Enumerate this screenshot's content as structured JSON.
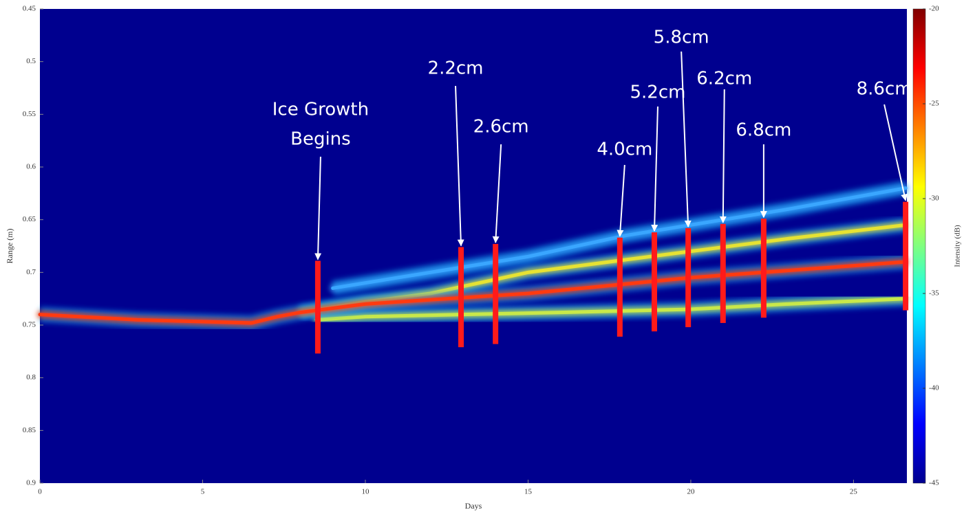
{
  "chart_data": {
    "type": "line",
    "x_label": "Days",
    "y_label": "Range (m)",
    "xlim": [
      0,
      26.64
    ],
    "xticks": [
      0,
      5,
      10,
      15,
      20,
      25
    ],
    "ylim": [
      0.45,
      0.9
    ],
    "yticks": [
      0.45,
      0.5,
      0.55,
      0.6,
      0.65,
      0.7,
      0.75,
      0.8,
      0.85,
      0.9
    ],
    "y_inverted": true,
    "background": "#00008f",
    "colorbar": {
      "label": "Intensity (dB)",
      "clim": [
        -45,
        -20
      ],
      "ticks": [
        -20,
        -25,
        -30,
        -35,
        -40,
        -45
      ]
    },
    "series": [
      {
        "color": "#3aa6ff",
        "x": [
          9,
          12,
          15,
          18,
          20,
          23,
          26.6
        ],
        "values": [
          0.715,
          0.7,
          0.685,
          0.665,
          0.655,
          0.64,
          0.62
        ]
      },
      {
        "color": "#e6e233",
        "x": [
          8,
          10,
          12,
          15,
          18,
          20,
          23,
          26.6
        ],
        "values": [
          0.738,
          0.728,
          0.72,
          0.7,
          0.688,
          0.68,
          0.668,
          0.655
        ]
      },
      {
        "color": "#c8e84a",
        "x": [
          8.5,
          10,
          13,
          16,
          20,
          23,
          26.6
        ],
        "values": [
          0.745,
          0.742,
          0.74,
          0.738,
          0.735,
          0.73,
          0.725
        ]
      },
      {
        "color": "#ff3a10",
        "x": [
          0,
          3,
          6.5,
          7.3,
          8,
          10,
          15,
          20,
          26.6
        ],
        "values": [
          0.74,
          0.745,
          0.748,
          0.742,
          0.738,
          0.73,
          0.72,
          0.705,
          0.69
        ]
      }
    ],
    "annotations": [
      {
        "label": [
          "Ice Growth",
          "Begins"
        ],
        "day": 8.54,
        "range_top": 0.689,
        "range_bottom": 0.777
      },
      {
        "label": [
          "2.2cm"
        ],
        "day": 12.94,
        "range_top": 0.676,
        "range_bottom": 0.771
      },
      {
        "label": [
          "2.6cm"
        ],
        "day": 14.0,
        "range_top": 0.673,
        "range_bottom": 0.768
      },
      {
        "label": [
          "4.0cm"
        ],
        "day": 17.82,
        "range_top": 0.667,
        "range_bottom": 0.761
      },
      {
        "label": [
          "5.2cm"
        ],
        "day": 18.88,
        "range_top": 0.662,
        "range_bottom": 0.756
      },
      {
        "label": [
          "5.8cm"
        ],
        "day": 19.92,
        "range_top": 0.658,
        "range_bottom": 0.752
      },
      {
        "label": [
          "6.2cm"
        ],
        "day": 20.99,
        "range_top": 0.654,
        "range_bottom": 0.748
      },
      {
        "label": [
          "6.8cm"
        ],
        "day": 22.24,
        "range_top": 0.649,
        "range_bottom": 0.743
      },
      {
        "label": [
          "8.6cm"
        ],
        "day": 26.6,
        "range_top": 0.633,
        "range_bottom": 0.736
      }
    ],
    "marker_color": "#ff1a1a"
  }
}
